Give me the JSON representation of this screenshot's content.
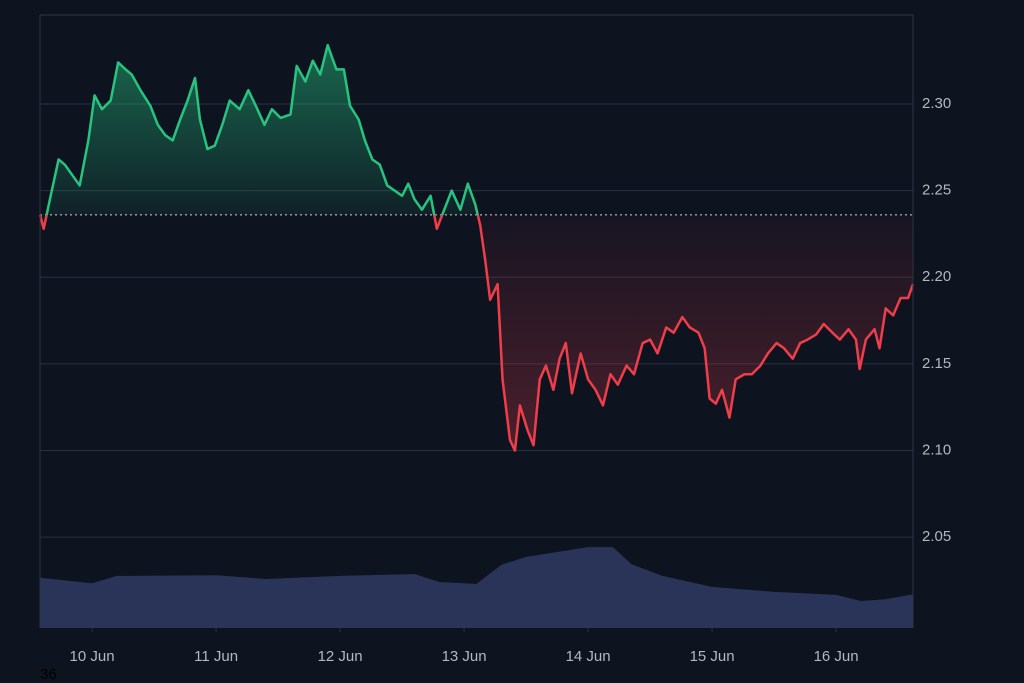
{
  "chart_data": {
    "type": "baseline",
    "xlim": [
      -0.42,
      6.62
    ],
    "xticks": [
      {
        "value": 0,
        "label": "10 Jun"
      },
      {
        "value": 1,
        "label": "11 Jun"
      },
      {
        "value": 2,
        "label": "12 Jun"
      },
      {
        "value": 3,
        "label": "13 Jun"
      },
      {
        "value": 4,
        "label": "14 Jun"
      },
      {
        "value": 5,
        "label": "15 Jun"
      },
      {
        "value": 6,
        "label": "16 Jun"
      }
    ],
    "ylim": [
      1.9975,
      2.3514
    ],
    "yticks": [
      2.05,
      {
        "value": 2.1,
        "label": "2.10"
      },
      2.15,
      {
        "value": 2.2,
        "label": "2.20"
      },
      2.25,
      {
        "value": 2.3,
        "label": "2.30"
      }
    ],
    "grid": true,
    "baseline": 2.236,
    "up_color": "#26c47f",
    "down_color": "#ef3e4a",
    "price": {
      "x": [
        -0.42,
        -0.39,
        -0.34,
        -0.27,
        -0.22,
        -0.16,
        -0.1,
        -0.03,
        0.02,
        0.08,
        0.15,
        0.21,
        0.27,
        0.32,
        0.39,
        0.47,
        0.53,
        0.59,
        0.65,
        0.71,
        0.77,
        0.83,
        0.87,
        0.93,
        0.99,
        1.05,
        1.11,
        1.19,
        1.26,
        1.32,
        1.39,
        1.45,
        1.52,
        1.6,
        1.65,
        1.72,
        1.78,
        1.84,
        1.9,
        1.97,
        2.03,
        2.08,
        2.15,
        2.2,
        2.26,
        2.32,
        2.38,
        2.44,
        2.5,
        2.55,
        2.6,
        2.66,
        2.73,
        2.78,
        2.84,
        2.9,
        2.97,
        3.03,
        3.09,
        3.13,
        3.17,
        3.21,
        3.27,
        3.31,
        3.37,
        3.41,
        3.45,
        3.51,
        3.56,
        3.61,
        3.66,
        3.72,
        3.77,
        3.82,
        3.87,
        3.94,
        4.0,
        4.06,
        4.12,
        4.18,
        4.24,
        4.31,
        4.37,
        4.44,
        4.5,
        4.56,
        4.63,
        4.69,
        4.76,
        4.82,
        4.89,
        4.94,
        4.98,
        5.03,
        5.08,
        5.14,
        5.19,
        5.26,
        5.32,
        5.39,
        5.45,
        5.52,
        5.58,
        5.65,
        5.71,
        5.77,
        5.84,
        5.9,
        5.97,
        6.03,
        6.1,
        6.16,
        6.19,
        6.24,
        6.31,
        6.35,
        6.4,
        6.46,
        6.52,
        6.58,
        6.62
      ],
      "values": [
        2.236,
        2.228,
        2.245,
        2.268,
        2.265,
        2.259,
        2.253,
        2.279,
        2.305,
        2.297,
        2.302,
        2.324,
        2.32,
        2.317,
        2.308,
        2.299,
        2.288,
        2.282,
        2.279,
        2.291,
        2.302,
        2.315,
        2.291,
        2.274,
        2.276,
        2.288,
        2.302,
        2.297,
        2.308,
        2.299,
        2.288,
        2.297,
        2.292,
        2.294,
        2.322,
        2.313,
        2.325,
        2.317,
        2.334,
        2.32,
        2.32,
        2.299,
        2.291,
        2.279,
        2.268,
        2.265,
        2.253,
        2.25,
        2.247,
        2.254,
        2.245,
        2.239,
        2.247,
        2.228,
        2.239,
        2.25,
        2.239,
        2.254,
        2.242,
        2.23,
        2.21,
        2.187,
        2.196,
        2.141,
        2.106,
        2.1,
        2.126,
        2.112,
        2.103,
        2.141,
        2.149,
        2.135,
        2.153,
        2.162,
        2.133,
        2.156,
        2.141,
        2.135,
        2.126,
        2.144,
        2.138,
        2.149,
        2.144,
        2.162,
        2.164,
        2.156,
        2.171,
        2.168,
        2.177,
        2.171,
        2.168,
        2.159,
        2.13,
        2.127,
        2.135,
        2.119,
        2.141,
        2.144,
        2.144,
        2.149,
        2.156,
        2.162,
        2.159,
        2.153,
        2.162,
        2.164,
        2.167,
        2.173,
        2.168,
        2.164,
        2.17,
        2.164,
        2.147,
        2.164,
        2.17,
        2.159,
        2.182,
        2.178,
        2.188,
        2.188,
        2.196
      ]
    },
    "y2lim": [
      0,
      100
    ],
    "volume": {
      "color": "#2a3358",
      "x": [
        -0.42,
        0.0,
        0.2,
        1.0,
        1.4,
        2.0,
        2.6,
        2.8,
        3.1,
        3.3,
        3.5,
        4.0,
        4.2,
        4.35,
        4.6,
        5.0,
        5.5,
        6.0,
        6.2,
        6.4,
        6.62
      ],
      "values": [
        8.2,
        7.3,
        8.5,
        8.6,
        8.0,
        8.5,
        8.8,
        7.5,
        7.2,
        10.3,
        11.6,
        13.2,
        13.2,
        10.4,
        8.5,
        6.7,
        5.9,
        5.4,
        4.4,
        4.7,
        5.5
      ]
    },
    "corner_label": "36"
  }
}
